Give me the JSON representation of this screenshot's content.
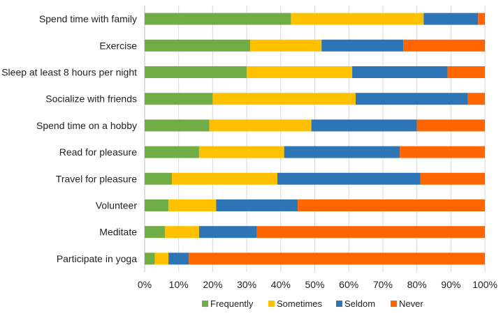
{
  "chart_data": {
    "type": "bar",
    "orientation": "horizontal",
    "stacked": "percent",
    "categories": [
      "Spend time with family",
      "Exercise",
      "Sleep at least 8 hours per night",
      "Socialize with friends",
      "Spend time on a hobby",
      "Read for pleasure",
      "Travel for pleasure",
      "Volunteer",
      "Meditate",
      "Participate in yoga"
    ],
    "series": [
      {
        "name": "Frequently",
        "color": "#70ad47",
        "values": [
          43,
          31,
          30,
          20,
          19,
          16,
          8,
          7,
          6,
          3
        ]
      },
      {
        "name": "Sometimes",
        "color": "#ffc000",
        "values": [
          39,
          21,
          31,
          42,
          30,
          25,
          31,
          14,
          10,
          4
        ]
      },
      {
        "name": "Seldom",
        "color": "#2e75b6",
        "values": [
          16,
          24,
          28,
          33,
          31,
          34,
          42,
          24,
          17,
          6
        ]
      },
      {
        "name": "Never",
        "color": "#ff6600",
        "values": [
          2,
          24,
          11,
          5,
          20,
          25,
          19,
          55,
          67,
          87
        ]
      }
    ],
    "xlim": [
      0,
      100
    ],
    "xticks": [
      "0%",
      "10%",
      "20%",
      "30%",
      "40%",
      "50%",
      "60%",
      "70%",
      "80%",
      "90%",
      "100%"
    ],
    "grid": "vertical",
    "legend": "bottom",
    "title": "",
    "xlabel": "",
    "ylabel": ""
  }
}
